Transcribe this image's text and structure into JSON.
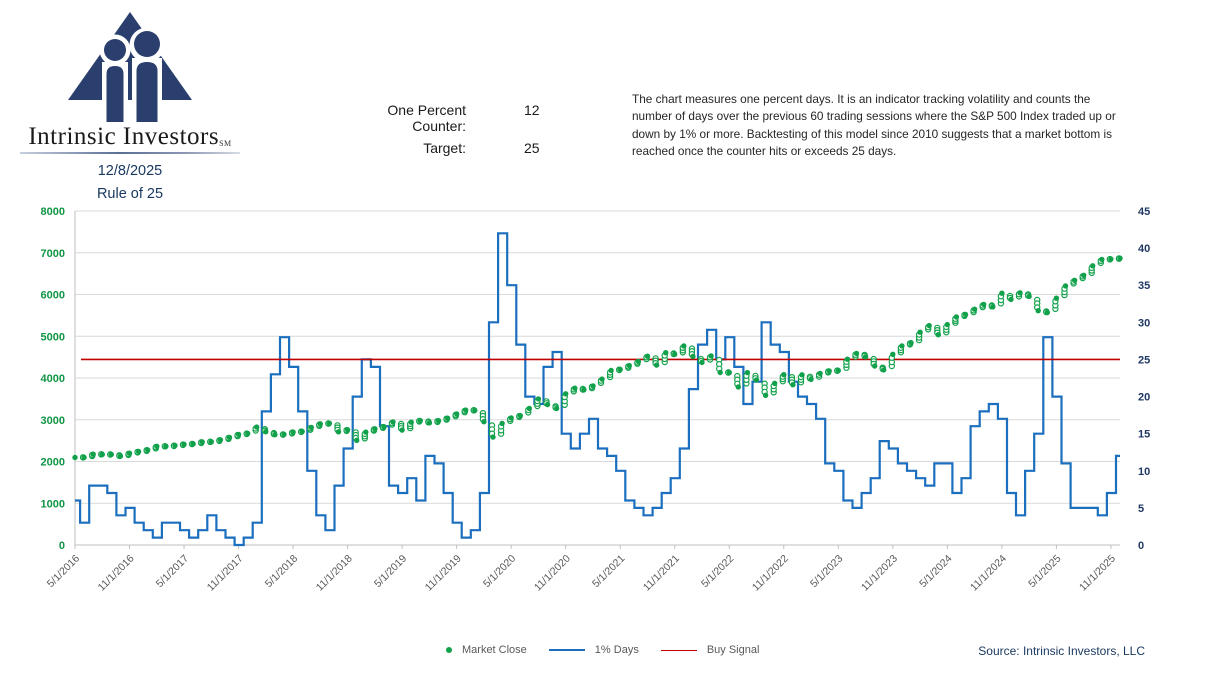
{
  "header": {
    "brand": "Intrinsic Investors",
    "brand_mark": "SM",
    "date": "12/8/2025",
    "chart_label": "Rule of 25"
  },
  "counter_panel": {
    "counter_label": "One Percent Counter:",
    "counter_value": "12",
    "target_label": "Target:",
    "target_value": "25"
  },
  "description": "The chart measures one percent days.  It is an indicator tracking volatility and counts the number of days over the previous 60 trading sessions where the S&P 500 Index traded up or down by 1% or more. Backtesting of this model since 2010 suggests that a market bottom is reached once the counter hits or exceeds 25 days.",
  "legend": {
    "market_close": "Market Close",
    "one_percent_days": "1% Days",
    "buy_signal": "Buy Signal"
  },
  "source": "Source: Intrinsic Investors, LLC",
  "colors": {
    "green": "#109544",
    "blue": "#1B6FBE",
    "red": "#C00000",
    "navy": "#1F3864",
    "gridline": "#D9D9D9",
    "axis_gray": "#BFBFBF",
    "tick_text": "#595959"
  },
  "chart_data": {
    "type": "line+scatter",
    "x_start": "5/1/2016",
    "x_unit": "month",
    "x_tick_every": 6,
    "x_tick_labels": [
      "5/1/2016",
      "11/1/2016",
      "5/1/2017",
      "11/1/2017",
      "5/1/2018",
      "11/1/2018",
      "5/1/2019",
      "11/1/2019",
      "5/1/2020",
      "11/1/2020",
      "5/1/2021",
      "11/1/2021",
      "5/1/2022",
      "11/1/2022",
      "5/1/2023",
      "11/1/2023",
      "5/1/2024",
      "11/1/2024",
      "5/1/2025",
      "11/1/2025"
    ],
    "y_left": {
      "min": 0,
      "max": 8000,
      "step": 1000
    },
    "y_right": {
      "min": 0,
      "max": 45,
      "step": 5
    },
    "buy_signal_value": 25,
    "series": [
      {
        "name": "Market Close",
        "axis": "left",
        "style": "scatter",
        "color": "#12A14B",
        "values": [
          2097,
          2099,
          2174,
          2171,
          2168,
          2126,
          2199,
          2239,
          2279,
          2364,
          2363,
          2384,
          2412,
          2423,
          2470,
          2472,
          2519,
          2575,
          2648,
          2674,
          2824,
          2714,
          2641,
          2648,
          2705,
          2718,
          2816,
          2902,
          2914,
          2712,
          2760,
          2507,
          2704,
          2784,
          2834,
          2946,
          2752,
          2942,
          2980,
          2926,
          2977,
          3038,
          3141,
          3231,
          3226,
          2954,
          2585,
          2912,
          3044,
          3100,
          3271,
          3500,
          3363,
          3270,
          3622,
          3756,
          3714,
          3811,
          3973,
          4181,
          4204,
          4298,
          4395,
          4523,
          4308,
          4605,
          4567,
          4766,
          4516,
          4374,
          4530,
          4132,
          4132,
          3785,
          4130,
          3955,
          3586,
          3872,
          4080,
          3840,
          4077,
          3970,
          4109,
          4169,
          4180,
          4450,
          4589,
          4508,
          4288,
          4194,
          4568,
          4770,
          4846,
          5096,
          5254,
          5036,
          5278,
          5460,
          5522,
          5648,
          5762,
          5705,
          6032,
          5882,
          6041,
          5955,
          5612,
          5569,
          5912,
          6205,
          6339,
          6460,
          6688,
          6840,
          6849,
          6870
        ]
      },
      {
        "name": "1% Days",
        "axis": "right",
        "style": "step-line",
        "color": "#1B6FBE",
        "values": [
          6,
          3,
          8,
          8,
          7,
          4,
          5,
          3,
          2,
          1,
          3,
          3,
          2,
          1,
          2,
          4,
          2,
          1,
          0,
          1,
          3,
          18,
          23,
          28,
          24,
          18,
          10,
          4,
          2,
          8,
          13,
          20,
          25,
          24,
          16,
          8,
          7,
          9,
          6,
          12,
          11,
          7,
          3,
          1,
          2,
          7,
          30,
          42,
          35,
          27,
          20,
          19,
          24,
          26,
          15,
          13,
          15,
          17,
          13,
          12,
          10,
          6,
          5,
          4,
          5,
          7,
          9,
          13,
          21,
          27,
          29,
          25,
          28,
          24,
          19,
          22,
          30,
          27,
          26,
          22,
          20,
          19,
          17,
          11,
          10,
          6,
          5,
          7,
          9,
          14,
          13,
          11,
          10,
          9,
          8,
          11,
          11,
          7,
          9,
          16,
          18,
          19,
          17,
          7,
          4,
          10,
          15,
          28,
          20,
          11,
          5,
          5,
          5,
          4,
          7,
          12
        ]
      },
      {
        "name": "Buy Signal",
        "axis": "right",
        "style": "hline",
        "color": "#C00000",
        "value": 25
      }
    ]
  }
}
